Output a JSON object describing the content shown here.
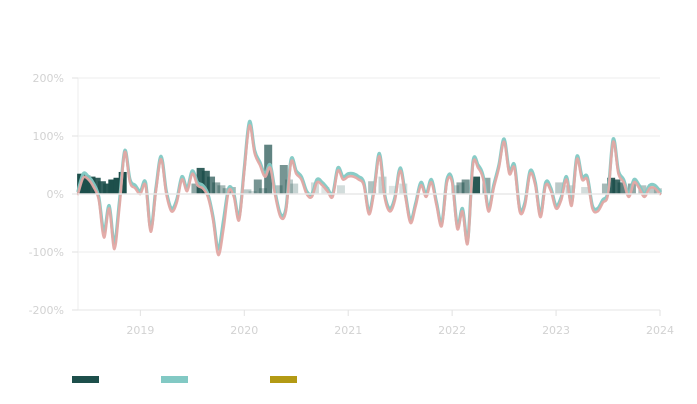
{
  "chart_data": {
    "type": "line",
    "title": "",
    "xlabel": "",
    "ylabel": "",
    "ylim": [
      -200,
      200
    ],
    "y_ticks": [
      {
        "value": 200,
        "label": "200%"
      },
      {
        "value": 100,
        "label": "100%"
      },
      {
        "value": 0,
        "label": "0%"
      },
      {
        "value": -100,
        "label": "-100%"
      },
      {
        "value": -200,
        "label": "-200%"
      }
    ],
    "x_ticks": [
      {
        "value": 2019.0,
        "label": "2019"
      },
      {
        "value": 2020.0,
        "label": "2020"
      },
      {
        "value": 2021.0,
        "label": "2021"
      },
      {
        "value": 2022.0,
        "label": "2022"
      },
      {
        "value": 2023.0,
        "label": "2023"
      },
      {
        "value": 2024.0,
        "label": "2024"
      }
    ],
    "xlim": [
      2018.4,
      2024.0
    ],
    "grid": true,
    "legend_position": "bottom-left",
    "colors": {
      "bars_dark": "#1d4f4b",
      "line_teal": "#82c9c4",
      "line_red": "#e3a8a4",
      "legend_gold": "#b39a14",
      "grid": "#ececec",
      "zero_line": "#d8d8d8"
    },
    "series": [
      {
        "kind": "bar",
        "color": "#1d4f4b",
        "legend_label": "",
        "x": [
          2018.43,
          2018.48,
          2018.53,
          2018.58,
          2018.63,
          2018.68,
          2018.73,
          2018.78,
          2018.83,
          2019.53,
          2019.58,
          2019.63,
          2019.68,
          2019.73,
          2019.78,
          2019.83,
          2019.88,
          2020.03,
          2020.08,
          2020.13,
          2020.18,
          2020.23,
          2020.33,
          2020.38,
          2020.43,
          2020.48,
          2020.68,
          2020.78,
          2020.93,
          2021.23,
          2021.33,
          2021.43,
          2021.53,
          2022.03,
          2022.08,
          2022.13,
          2022.23,
          2022.33,
          2023.03,
          2023.13,
          2023.28,
          2023.48,
          2023.53,
          2023.58,
          2023.63,
          2023.73,
          2023.83,
          2023.93,
          2023.98
        ],
        "values": [
          35,
          32,
          30,
          28,
          22,
          18,
          25,
          28,
          38,
          18,
          45,
          40,
          30,
          20,
          15,
          10,
          12,
          8,
          5,
          25,
          10,
          85,
          15,
          50,
          25,
          18,
          20,
          12,
          15,
          22,
          30,
          14,
          18,
          15,
          20,
          25,
          30,
          28,
          20,
          15,
          12,
          18,
          28,
          25,
          20,
          18,
          15,
          12,
          10
        ],
        "opacity": [
          1,
          1,
          0.95,
          0.9,
          0.9,
          0.95,
          1,
          1,
          1,
          0.5,
          0.9,
          0.85,
          0.7,
          0.5,
          0.4,
          0.35,
          0.4,
          0.3,
          0.2,
          0.6,
          0.3,
          0.7,
          0.35,
          0.6,
          0.3,
          0.25,
          0.2,
          0.15,
          0.2,
          0.35,
          0.25,
          0.15,
          0.2,
          0.25,
          0.5,
          0.6,
          0.95,
          0.5,
          0.3,
          0.25,
          0.2,
          0.4,
          0.9,
          0.85,
          0.7,
          0.5,
          0.35,
          0.3,
          0.25
        ]
      },
      {
        "kind": "line",
        "color": "#82c9c4",
        "legend_label": "",
        "x": [
          2018.4,
          2018.45,
          2018.5,
          2018.55,
          2018.6,
          2018.65,
          2018.7,
          2018.75,
          2018.8,
          2018.85,
          2018.9,
          2018.95,
          2019.0,
          2019.05,
          2019.1,
          2019.15,
          2019.2,
          2019.25,
          2019.3,
          2019.35,
          2019.4,
          2019.45,
          2019.5,
          2019.55,
          2019.6,
          2019.65,
          2019.7,
          2019.75,
          2019.8,
          2019.85,
          2019.9,
          2019.95,
          2020.0,
          2020.05,
          2020.1,
          2020.15,
          2020.2,
          2020.25,
          2020.3,
          2020.35,
          2020.4,
          2020.45,
          2020.5,
          2020.55,
          2020.6,
          2020.65,
          2020.7,
          2020.75,
          2020.8,
          2020.85,
          2020.9,
          2020.95,
          2021.0,
          2021.05,
          2021.1,
          2021.15,
          2021.2,
          2021.25,
          2021.3,
          2021.35,
          2021.4,
          2021.45,
          2021.5,
          2021.55,
          2021.6,
          2021.65,
          2021.7,
          2021.75,
          2021.8,
          2021.85,
          2021.9,
          2021.95,
          2022.0,
          2022.05,
          2022.1,
          2022.15,
          2022.2,
          2022.25,
          2022.3,
          2022.35,
          2022.4,
          2022.45,
          2022.5,
          2022.55,
          2022.6,
          2022.65,
          2022.7,
          2022.75,
          2022.8,
          2022.85,
          2022.9,
          2022.95,
          2023.0,
          2023.05,
          2023.1,
          2023.15,
          2023.2,
          2023.25,
          2023.3,
          2023.35,
          2023.4,
          2023.45,
          2023.5,
          2023.55,
          2023.6,
          2023.65,
          2023.7,
          2023.75,
          2023.8,
          2023.85,
          2023.9,
          2023.95,
          2024.0
        ],
        "values": [
          5,
          35,
          30,
          18,
          -5,
          -65,
          -20,
          -85,
          -10,
          75,
          25,
          15,
          5,
          20,
          -60,
          10,
          65,
          5,
          -25,
          -10,
          30,
          10,
          40,
          20,
          15,
          0,
          -40,
          -95,
          -45,
          10,
          0,
          -40,
          45,
          125,
          75,
          55,
          35,
          50,
          0,
          -35,
          -25,
          60,
          40,
          30,
          5,
          0,
          25,
          20,
          10,
          0,
          45,
          30,
          35,
          35,
          30,
          20,
          -30,
          10,
          70,
          0,
          -25,
          -5,
          45,
          0,
          -45,
          -15,
          20,
          0,
          25,
          -15,
          -50,
          25,
          25,
          -55,
          -25,
          -80,
          55,
          50,
          30,
          -25,
          15,
          50,
          95,
          40,
          50,
          -25,
          -15,
          40,
          20,
          -35,
          20,
          10,
          -20,
          -5,
          30,
          -15,
          65,
          30,
          30,
          -20,
          -25,
          -10,
          5,
          95,
          40,
          25,
          0,
          25,
          15,
          0,
          15,
          15,
          5
        ],
        "stroke_width": 3.2
      },
      {
        "kind": "line",
        "color": "#e3a8a4",
        "legend_label": "",
        "x": [
          2018.4,
          2018.45,
          2018.5,
          2018.55,
          2018.6,
          2018.65,
          2018.7,
          2018.75,
          2018.8,
          2018.85,
          2018.9,
          2018.95,
          2019.0,
          2019.05,
          2019.1,
          2019.15,
          2019.2,
          2019.25,
          2019.3,
          2019.35,
          2019.4,
          2019.45,
          2019.5,
          2019.55,
          2019.6,
          2019.65,
          2019.7,
          2019.75,
          2019.8,
          2019.85,
          2019.9,
          2019.95,
          2020.0,
          2020.05,
          2020.1,
          2020.15,
          2020.2,
          2020.25,
          2020.3,
          2020.35,
          2020.4,
          2020.45,
          2020.5,
          2020.55,
          2020.6,
          2020.65,
          2020.7,
          2020.75,
          2020.8,
          2020.85,
          2020.9,
          2020.95,
          2021.0,
          2021.05,
          2021.1,
          2021.15,
          2021.2,
          2021.25,
          2021.3,
          2021.35,
          2021.4,
          2021.45,
          2021.5,
          2021.55,
          2021.6,
          2021.65,
          2021.7,
          2021.75,
          2021.8,
          2021.85,
          2021.9,
          2021.95,
          2022.0,
          2022.05,
          2022.1,
          2022.15,
          2022.2,
          2022.25,
          2022.3,
          2022.35,
          2022.4,
          2022.45,
          2022.5,
          2022.55,
          2022.6,
          2022.65,
          2022.7,
          2022.75,
          2022.8,
          2022.85,
          2022.9,
          2022.95,
          2023.0,
          2023.05,
          2023.1,
          2023.15,
          2023.2,
          2023.25,
          2023.3,
          2023.35,
          2023.4,
          2023.45,
          2023.5,
          2023.55,
          2023.6,
          2023.65,
          2023.7,
          2023.75,
          2023.8,
          2023.85,
          2023.9,
          2023.95,
          2024.0
        ],
        "values": [
          0,
          28,
          25,
          12,
          -10,
          -75,
          -25,
          -95,
          -20,
          72,
          20,
          10,
          0,
          15,
          -65,
          5,
          60,
          0,
          -30,
          -15,
          25,
          5,
          35,
          15,
          10,
          -5,
          -45,
          -105,
          -60,
          5,
          -5,
          -45,
          40,
          118,
          70,
          50,
          30,
          45,
          -5,
          -40,
          -30,
          55,
          35,
          25,
          0,
          -5,
          20,
          15,
          5,
          -5,
          40,
          25,
          30,
          30,
          25,
          15,
          -35,
          5,
          65,
          -5,
          -30,
          -10,
          40,
          -5,
          -50,
          -20,
          15,
          -5,
          20,
          -20,
          -55,
          20,
          20,
          -60,
          -30,
          -85,
          50,
          45,
          25,
          -30,
          10,
          45,
          90,
          35,
          45,
          -30,
          -20,
          35,
          15,
          -40,
          15,
          5,
          -25,
          -10,
          25,
          -20,
          60,
          25,
          25,
          -25,
          -30,
          -15,
          0,
          90,
          35,
          20,
          -5,
          20,
          10,
          -5,
          10,
          10,
          0
        ],
        "stroke_width": 2.6
      }
    ],
    "legend": [
      {
        "color": "#1d4f4b",
        "label": ""
      },
      {
        "color": "#82c9c4",
        "label": ""
      },
      {
        "color": "#b39a14",
        "label": ""
      }
    ]
  }
}
